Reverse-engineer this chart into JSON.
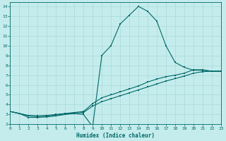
{
  "xlabel": "Humidex (Indice chaleur)",
  "bg_color": "#c5ecec",
  "grid_color": "#a8d8d8",
  "line_color": "#006868",
  "axis_bottom_color": "#4aabab",
  "xlim": [
    0,
    23
  ],
  "ylim": [
    2,
    14.4
  ],
  "xticks": [
    0,
    1,
    2,
    3,
    4,
    5,
    6,
    7,
    8,
    9,
    10,
    11,
    12,
    13,
    14,
    15,
    16,
    17,
    18,
    19,
    20,
    21,
    22,
    23
  ],
  "yticks": [
    2,
    3,
    4,
    5,
    6,
    7,
    8,
    9,
    10,
    11,
    12,
    13,
    14
  ],
  "line1_x": [
    0,
    1,
    2,
    3,
    4,
    5,
    6,
    7,
    8,
    9,
    10,
    11,
    12,
    13,
    14,
    15,
    16,
    17,
    18,
    19,
    20,
    21,
    22,
    23
  ],
  "line1_y": [
    3.3,
    3.1,
    2.7,
    2.7,
    2.75,
    2.85,
    3.0,
    3.1,
    3.0,
    1.75,
    9.0,
    10.0,
    12.2,
    13.1,
    14.0,
    13.5,
    12.5,
    10.0,
    8.3,
    7.8,
    7.5,
    7.5,
    7.4,
    7.4
  ],
  "line2_x": [
    0,
    1,
    2,
    3,
    4,
    5,
    6,
    7,
    8,
    9,
    10,
    11,
    12,
    13,
    14,
    15,
    16,
    17,
    18,
    19,
    20,
    21,
    22,
    23
  ],
  "line2_y": [
    3.3,
    3.1,
    2.9,
    2.85,
    2.9,
    3.0,
    3.1,
    3.2,
    3.3,
    4.1,
    4.7,
    5.0,
    5.3,
    5.6,
    5.9,
    6.3,
    6.6,
    6.85,
    7.0,
    7.2,
    7.55,
    7.55,
    7.4,
    7.4
  ],
  "line3_x": [
    0,
    1,
    2,
    3,
    4,
    5,
    6,
    7,
    8,
    9,
    10,
    11,
    12,
    13,
    14,
    15,
    16,
    17,
    18,
    19,
    20,
    21,
    22,
    23
  ],
  "line3_y": [
    3.3,
    3.1,
    2.85,
    2.8,
    2.85,
    2.95,
    3.05,
    3.15,
    3.2,
    3.85,
    4.3,
    4.6,
    4.9,
    5.2,
    5.5,
    5.8,
    6.1,
    6.4,
    6.65,
    6.9,
    7.2,
    7.35,
    7.4,
    7.4
  ]
}
